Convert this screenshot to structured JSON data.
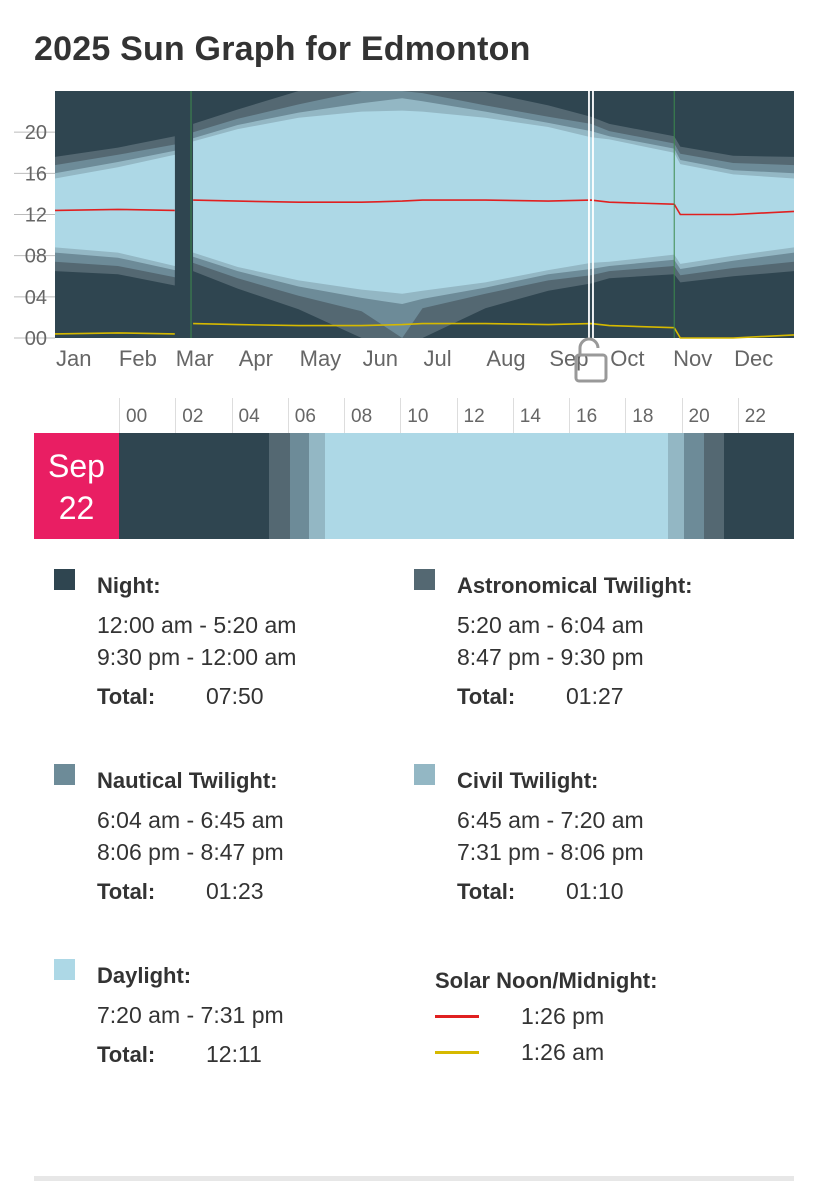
{
  "page": {
    "title": "2025 Sun Graph for Edmonton"
  },
  "colors": {
    "night": "#2f4550",
    "astronomical": "#546872",
    "nautical": "#6d8b98",
    "civil": "#93b7c4",
    "daylight": "#add8e6",
    "solar_noon": "#e02020",
    "solar_midnight": "#d6b900",
    "date_badge": "#e91e63"
  },
  "chart_data": {
    "type": "area",
    "title": "2025 Sun Graph for Edmonton",
    "xlabel": "",
    "ylabel": "",
    "ylim": [
      0,
      24
    ],
    "yticks": [
      "00",
      "04",
      "08",
      "12",
      "16",
      "20"
    ],
    "x_categories": [
      "Jan",
      "Feb",
      "Mar",
      "Apr",
      "May",
      "Jun",
      "Jul",
      "Aug",
      "Sep",
      "Oct",
      "Nov",
      "Dec"
    ],
    "day_of_year": [
      1,
      32,
      60,
      69,
      91,
      121,
      152,
      172,
      182,
      213,
      244,
      265,
      274,
      306,
      309,
      335,
      365
    ],
    "series": [
      {
        "name": "Night",
        "band": [
          "night_start",
          "night_end"
        ]
      },
      {
        "name": "Astronomical Twilight",
        "hours_start": [
          6.5,
          6.2,
          5.1,
          6.5,
          4.8,
          2.8,
          0.0,
          0.0,
          0.0,
          2.9,
          4.6,
          5.3,
          5.8,
          6.2,
          5.4,
          6.0,
          6.5
        ],
        "hours_end": [
          17.6,
          18.5,
          19.6,
          20.8,
          22.2,
          24.0,
          24.0,
          24.0,
          24.0,
          23.9,
          22.6,
          21.5,
          20.8,
          19.6,
          18.6,
          17.7,
          17.6
        ]
      },
      {
        "name": "Nautical Twilight",
        "hours_start": [
          7.4,
          7.0,
          5.9,
          7.3,
          5.8,
          4.1,
          2.6,
          0.0,
          2.9,
          4.3,
          5.6,
          6.1,
          6.5,
          7.0,
          6.1,
          6.8,
          7.4
        ],
        "hours_end": [
          16.8,
          17.8,
          18.8,
          20.0,
          21.3,
          22.7,
          24.0,
          24.0,
          23.8,
          22.6,
          21.5,
          20.8,
          20.1,
          18.9,
          17.9,
          17.0,
          16.8
        ]
      },
      {
        "name": "Civil Twilight",
        "hours_start": [
          8.3,
          7.8,
          6.6,
          7.9,
          6.5,
          5.0,
          3.9,
          3.3,
          3.8,
          4.9,
          6.2,
          6.7,
          7.0,
          7.6,
          6.7,
          7.5,
          8.3
        ],
        "hours_end": [
          16.0,
          17.1,
          18.2,
          19.4,
          20.7,
          21.9,
          22.8,
          23.3,
          23.0,
          22.0,
          20.9,
          20.1,
          19.6,
          18.4,
          17.3,
          16.3,
          16.0
        ]
      },
      {
        "name": "Daylight",
        "hours_start": [
          8.8,
          8.3,
          7.0,
          8.3,
          6.9,
          5.6,
          4.7,
          4.3,
          4.6,
          5.4,
          6.6,
          7.3,
          7.4,
          8.1,
          7.2,
          8.0,
          8.8
        ],
        "hours_end": [
          15.5,
          16.6,
          17.8,
          19.1,
          20.3,
          21.4,
          22.0,
          22.1,
          22.0,
          21.4,
          20.5,
          19.5,
          19.3,
          18.0,
          16.9,
          15.9,
          15.5
        ]
      },
      {
        "name": "Solar Noon",
        "hours": [
          12.4,
          12.5,
          12.4,
          13.4,
          13.3,
          13.2,
          13.2,
          13.3,
          13.4,
          13.4,
          13.3,
          13.4,
          13.2,
          13.0,
          12.0,
          12.0,
          12.3
        ]
      },
      {
        "name": "Solar Midnight",
        "hours": [
          0.4,
          0.5,
          0.4,
          1.4,
          1.3,
          1.2,
          1.2,
          1.3,
          1.4,
          1.4,
          1.3,
          1.4,
          1.2,
          1.0,
          0.0,
          0.0,
          0.3
        ]
      }
    ],
    "dst_changes_day_of_year": [
      68,
      306
    ],
    "selected_day_of_year": 265,
    "grid": true,
    "legend": "none"
  },
  "day_view": {
    "month": "Sep",
    "day": "22",
    "hour_ticks": [
      "00",
      "02",
      "04",
      "06",
      "08",
      "10",
      "12",
      "14",
      "16",
      "18",
      "20",
      "22"
    ],
    "segments": [
      {
        "phase": "night",
        "start": 0,
        "end": 5.333
      },
      {
        "phase": "astronomical",
        "start": 5.333,
        "end": 6.067
      },
      {
        "phase": "nautical",
        "start": 6.067,
        "end": 6.75
      },
      {
        "phase": "civil",
        "start": 6.75,
        "end": 7.333
      },
      {
        "phase": "daylight",
        "start": 7.333,
        "end": 19.517
      },
      {
        "phase": "civil",
        "start": 19.517,
        "end": 20.1
      },
      {
        "phase": "nautical",
        "start": 20.1,
        "end": 20.783
      },
      {
        "phase": "astronomical",
        "start": 20.783,
        "end": 21.5
      },
      {
        "phase": "night",
        "start": 21.5,
        "end": 24
      }
    ]
  },
  "legend": {
    "night": {
      "title": "Night:",
      "times": [
        "12:00 am - 5:20 am",
        "9:30 pm - 12:00 am"
      ],
      "total_label": "Total:",
      "total": "07:50"
    },
    "astronomical": {
      "title": "Astronomical Twilight:",
      "times": [
        "5:20 am - 6:04 am",
        "8:47 pm - 9:30 pm"
      ],
      "total_label": "Total:",
      "total": "01:27"
    },
    "nautical": {
      "title": "Nautical Twilight:",
      "times": [
        "6:04 am - 6:45 am",
        "8:06 pm - 8:47 pm"
      ],
      "total_label": "Total:",
      "total": "01:23"
    },
    "civil": {
      "title": "Civil Twilight:",
      "times": [
        "6:45 am - 7:20 am",
        "7:31 pm - 8:06 pm"
      ],
      "total_label": "Total:",
      "total": "01:10"
    },
    "daylight": {
      "title": "Daylight:",
      "times": [
        "7:20 am - 7:31 pm"
      ],
      "total_label": "Total:",
      "total": "12:11"
    },
    "solar": {
      "title": "Solar Noon/Midnight:",
      "noon": "1:26 pm",
      "midnight": "1:26 am"
    }
  },
  "icons": {
    "date_slider_handle": "lock-open-icon"
  }
}
